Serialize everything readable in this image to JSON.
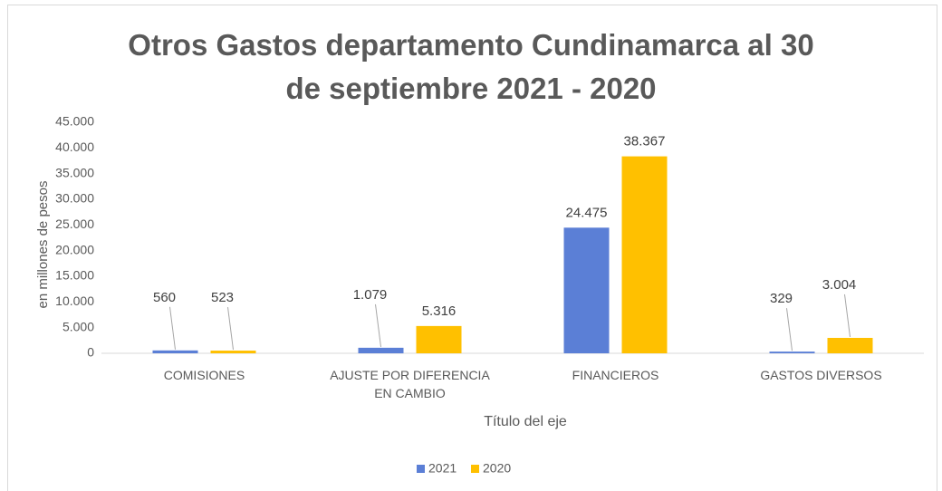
{
  "chart_data": {
    "type": "bar",
    "title": "Otros Gastos departamento Cundinamarca al 30 de septiembre 2021 - 2020",
    "x_label": "Título del eje",
    "y_label": "en millones de pesos",
    "categories": [
      "COMISIONES",
      "AJUSTE POR DIFERENCIA EN CAMBIO",
      "FINANCIEROS",
      "GASTOS DIVERSOS"
    ],
    "series": [
      {
        "name": "2021",
        "color": "#5b7fd6",
        "values": [
          560,
          1079,
          24475,
          329
        ],
        "value_labels": [
          "560",
          "1.079",
          "24.475",
          "329"
        ]
      },
      {
        "name": "2020",
        "color": "#ffc000",
        "values": [
          523,
          5316,
          38367,
          3004
        ],
        "value_labels": [
          "523",
          "5.316",
          "38.367",
          "3.004"
        ]
      }
    ],
    "ylim": [
      0,
      45000
    ],
    "yticks": [
      0,
      {
        "value": 5000,
        "label": "5.000"
      },
      {
        "value": 10000,
        "label": "10.000"
      },
      {
        "value": 15000,
        "label": "15.000"
      },
      {
        "value": 20000,
        "label": "20.000"
      },
      {
        "value": 25000,
        "label": "25.000"
      },
      {
        "value": 30000,
        "label": "30.000"
      },
      {
        "value": 35000,
        "label": "35.000"
      },
      {
        "value": 40000,
        "label": "40.000"
      },
      {
        "value": 45000,
        "label": "45.000"
      }
    ],
    "grid": false,
    "legend": "bottom"
  }
}
